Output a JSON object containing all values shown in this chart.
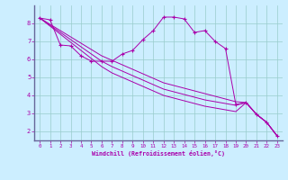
{
  "xlabel": "Windchill (Refroidissement éolien,°C)",
  "bg_color": "#cceeff",
  "line_color": "#aa00aa",
  "grid_color": "#99cccc",
  "axis_color": "#666699",
  "xlim": [
    -0.5,
    23.5
  ],
  "ylim": [
    1.5,
    9.0
  ],
  "xticks": [
    0,
    1,
    2,
    3,
    4,
    5,
    6,
    7,
    8,
    9,
    10,
    11,
    12,
    13,
    14,
    15,
    16,
    17,
    18,
    19,
    20,
    21,
    22,
    23
  ],
  "yticks": [
    2,
    3,
    4,
    5,
    6,
    7,
    8
  ],
  "main_line": [
    8.3,
    8.2,
    6.8,
    6.75,
    6.2,
    5.9,
    5.9,
    5.9,
    6.3,
    6.5,
    7.1,
    7.6,
    8.35,
    8.35,
    8.25,
    7.5,
    7.6,
    7.0,
    6.6,
    3.5,
    3.6,
    2.95,
    2.5,
    1.75
  ],
  "diag1": [
    8.3,
    7.95,
    7.6,
    7.25,
    6.9,
    6.55,
    6.2,
    5.95,
    5.7,
    5.45,
    5.2,
    4.95,
    4.7,
    4.55,
    4.4,
    4.25,
    4.1,
    3.95,
    3.8,
    3.65,
    3.6,
    2.95,
    2.5,
    1.75
  ],
  "diag2": [
    8.3,
    7.9,
    7.5,
    7.1,
    6.7,
    6.3,
    5.9,
    5.6,
    5.35,
    5.1,
    4.85,
    4.6,
    4.35,
    4.2,
    4.05,
    3.9,
    3.75,
    3.65,
    3.55,
    3.45,
    3.6,
    2.95,
    2.5,
    1.75
  ],
  "diag3": [
    8.3,
    7.85,
    7.4,
    6.95,
    6.5,
    6.05,
    5.6,
    5.25,
    5.0,
    4.75,
    4.5,
    4.25,
    4.0,
    3.85,
    3.7,
    3.55,
    3.4,
    3.3,
    3.2,
    3.1,
    3.6,
    2.95,
    2.5,
    1.75
  ]
}
